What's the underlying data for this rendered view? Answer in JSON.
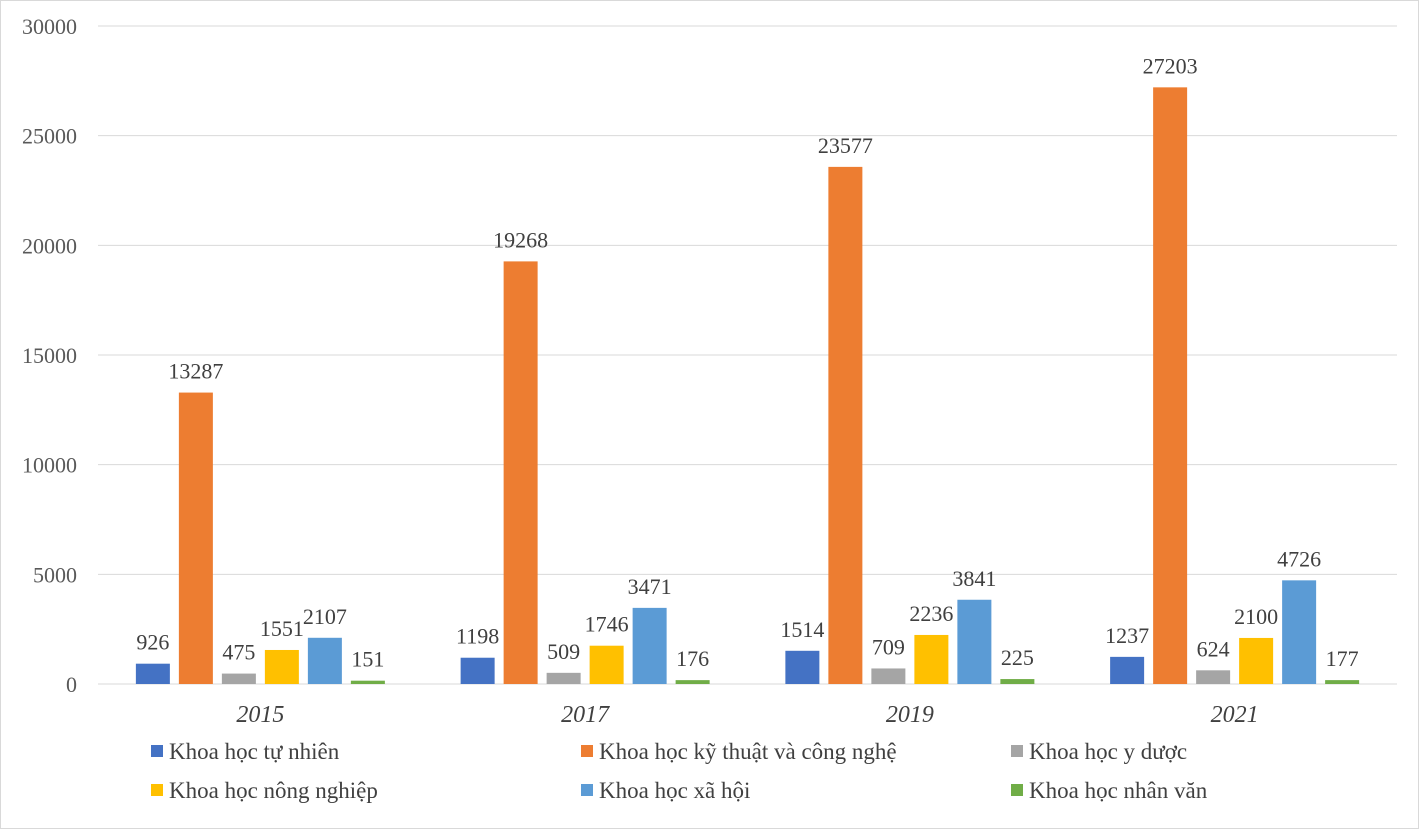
{
  "chart_data": {
    "type": "bar",
    "title": "",
    "xlabel": "",
    "ylabel": "",
    "categories": [
      "2015",
      "2017",
      "2019",
      "2021"
    ],
    "ylim": [
      0,
      30000
    ],
    "yticks": [
      "0",
      "5000",
      "10000",
      "15000",
      "20000",
      "25000",
      "30000"
    ],
    "grid": true,
    "legend_position": "bottom",
    "series": [
      {
        "name": "Khoa học tự nhiên",
        "color": "#4472C4",
        "values": [
          926,
          1198,
          1514,
          1237
        ]
      },
      {
        "name": "Khoa học kỹ thuật và công nghệ",
        "color": "#ED7D31",
        "values": [
          13287,
          19268,
          23577,
          27203
        ]
      },
      {
        "name": "Khoa học y dược",
        "color": "#A5A5A5",
        "values": [
          475,
          509,
          709,
          624
        ]
      },
      {
        "name": "Khoa học nông nghiệp",
        "color": "#FFC000",
        "values": [
          1551,
          1746,
          2236,
          2100
        ]
      },
      {
        "name": "Khoa học xã hội",
        "color": "#5B9BD5",
        "values": [
          2107,
          3471,
          3841,
          4726
        ]
      },
      {
        "name": "Khoa học nhân văn",
        "color": "#70AD47",
        "values": [
          151,
          176,
          225,
          177
        ]
      }
    ]
  }
}
